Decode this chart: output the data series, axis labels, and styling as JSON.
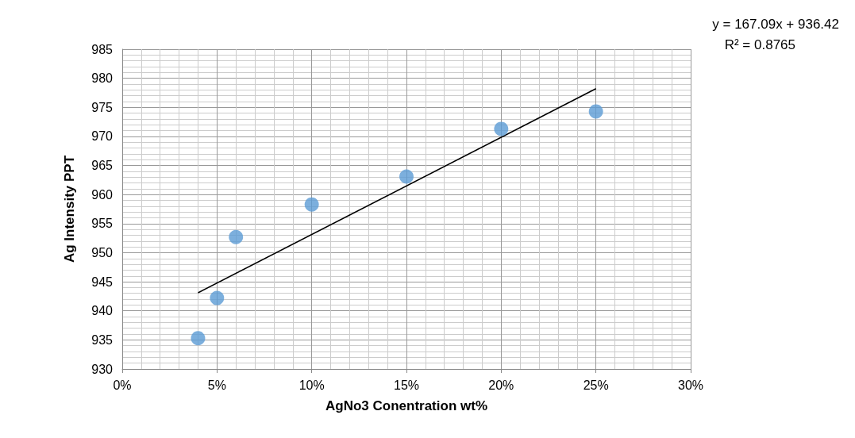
{
  "chart_data": {
    "type": "scatter",
    "xlabel": "AgNo3 Conentration wt%",
    "ylabel": "Ag Intensity PPT",
    "annotations": [
      "y = 167.09x + 936.42",
      "R² = 0.8765"
    ],
    "series": [
      {
        "color": "#5b9bd5",
        "marker": "circle",
        "x": [
          0.04,
          0.05,
          0.06,
          0.1,
          0.15,
          0.2,
          0.25
        ],
        "values": [
          935.3,
          942.2,
          952.7,
          958.3,
          963.1,
          971.3,
          974.3
        ]
      },
      {
        "type": "line",
        "color": "#000000",
        "marker": "none",
        "x": [
          0.04,
          0.25
        ],
        "values": [
          943.1,
          978.2
        ]
      }
    ],
    "xlim": [
      0,
      0.3
    ],
    "xticks": [
      {
        "value": 0,
        "label": "0%"
      },
      {
        "value": 0.05,
        "label": "5%"
      },
      {
        "value": 0.1,
        "label": "10%"
      },
      {
        "value": 0.15,
        "label": "15%"
      },
      {
        "value": 0.2,
        "label": "20%"
      },
      {
        "value": 0.25,
        "label": "25%"
      },
      {
        "value": 0.3,
        "label": "30%"
      }
    ],
    "ylim": [
      930,
      985
    ],
    "yticks": [
      930,
      935,
      940,
      945,
      950,
      955,
      960,
      965,
      970,
      975,
      980,
      985
    ],
    "grid": true
  }
}
